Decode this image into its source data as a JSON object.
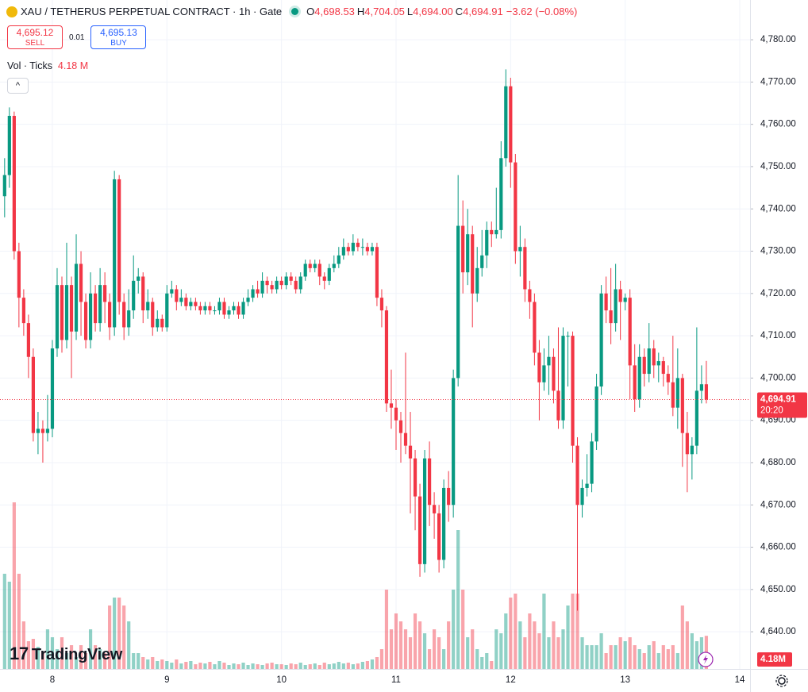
{
  "chart_data": {
    "type": "candlestick",
    "title": "XAU / TETHERUS PERPETUAL CONTRACT · 1h · Gate",
    "legend_ohlc": [
      {
        "label": "O",
        "value": "4,698.53"
      },
      {
        "label": "H",
        "value": "4,704.05"
      },
      {
        "label": "L",
        "value": "4,694.00"
      },
      {
        "label": "C",
        "value": "4,694.91"
      }
    ],
    "change": "−3.62 (−0.08%)",
    "trade": {
      "sell_price": "4,695.12",
      "sell": "SELL",
      "spread": "0.01",
      "buy_price": "4,695.13",
      "buy": "BUY"
    },
    "volume_legend": {
      "name": "Vol · Ticks",
      "value": "4.18 M"
    },
    "last_price_label": "4,694.91",
    "countdown": "20:20",
    "volume_badge": "4.18M",
    "brand": "TradingView",
    "up_color": "#089981",
    "down_color": "#f23645",
    "grid": true,
    "xlim": [
      7.543,
      14.09
    ],
    "xticks": [
      8,
      9,
      10,
      11,
      12,
      13,
      14
    ],
    "ylim": [
      4631.2,
      4789.4
    ],
    "yticks": [
      {
        "value": 4640,
        "label": "4,640.00"
      },
      {
        "value": 4650,
        "label": "4,650.00"
      },
      {
        "value": 4660,
        "label": "4,660.00"
      },
      {
        "value": 4670,
        "label": "4,670.00"
      },
      {
        "value": 4680,
        "label": "4,680.00"
      },
      {
        "value": 4690,
        "label": "4,690.00"
      },
      {
        "value": 4700,
        "label": "4,700.00"
      },
      {
        "value": 4710,
        "label": "4,710.00"
      },
      {
        "value": 4720,
        "label": "4,720.00"
      },
      {
        "value": 4730,
        "label": "4,730.00"
      },
      {
        "value": 4740,
        "label": "4,740.00"
      },
      {
        "value": 4750,
        "label": "4,750.00"
      },
      {
        "value": 4760,
        "label": "4,760.00"
      },
      {
        "value": 4770,
        "label": "4,770.00"
      },
      {
        "value": 4780,
        "label": "4,780.00"
      }
    ],
    "volume_ylim": [
      0,
      84.3
    ],
    "x": [
      7.5833,
      7.625,
      7.6667,
      7.7083,
      7.75,
      7.7917,
      7.8333,
      7.875,
      7.9167,
      7.9583,
      8,
      8.0417,
      8.0833,
      8.125,
      8.1667,
      8.2083,
      8.25,
      8.2917,
      8.3333,
      8.375,
      8.4167,
      8.4583,
      8.5,
      8.5417,
      8.5833,
      8.625,
      8.6667,
      8.7083,
      8.75,
      8.7917,
      8.8333,
      8.875,
      8.9167,
      8.9583,
      9,
      9.0417,
      9.0833,
      9.125,
      9.1667,
      9.2083,
      9.25,
      9.2917,
      9.3333,
      9.375,
      9.4167,
      9.4583,
      9.5,
      9.5417,
      9.5833,
      9.625,
      9.6667,
      9.7083,
      9.75,
      9.7917,
      9.8333,
      9.875,
      9.9167,
      9.9583,
      10,
      10.0417,
      10.0833,
      10.125,
      10.1667,
      10.2083,
      10.25,
      10.2917,
      10.3333,
      10.375,
      10.4167,
      10.4583,
      10.5,
      10.5417,
      10.5833,
      10.625,
      10.6667,
      10.7083,
      10.75,
      10.7917,
      10.8333,
      10.875,
      10.9167,
      10.9583,
      11,
      11.0417,
      11.0833,
      11.125,
      11.1667,
      11.2083,
      11.25,
      11.2917,
      11.3333,
      11.375,
      11.4167,
      11.4583,
      11.5,
      11.5417,
      11.5833,
      11.625,
      11.6667,
      11.7083,
      11.75,
      11.7917,
      11.8333,
      11.875,
      11.9167,
      11.9583,
      12,
      12.0417,
      12.0833,
      12.125,
      12.1667,
      12.2083,
      12.25,
      12.2917,
      12.3333,
      12.375,
      12.4167,
      12.4583,
      12.5,
      12.5417,
      12.5833,
      12.625,
      12.6667,
      12.7083,
      12.75,
      12.7917,
      12.8333,
      12.875,
      12.9167,
      12.9583,
      13,
      13.0417,
      13.0833,
      13.125,
      13.1667,
      13.2083,
      13.25,
      13.2917,
      13.3333,
      13.375,
      13.4167,
      13.4583,
      13.5,
      13.5417,
      13.5833,
      13.625,
      13.6667,
      13.7083
    ],
    "open": [
      4743,
      4748,
      4762,
      4730,
      4719,
      4713,
      4705,
      4687,
      4688,
      4687,
      4688,
      4707,
      4722,
      4709,
      4722,
      4711,
      4727,
      4718,
      4709,
      4720,
      4713,
      4722,
      4718,
      4712,
      4747,
      4718,
      4712,
      4716,
      4723,
      4724,
      4716,
      4718,
      4712,
      4714,
      4712,
      4720,
      4721,
      4718,
      4719,
      4717,
      4718,
      4717,
      4716,
      4717,
      4716,
      4716,
      4718,
      4715,
      4716,
      4717,
      4715,
      4718,
      4719,
      4721,
      4720,
      4723,
      4722,
      4721,
      4723,
      4722,
      4724,
      4723,
      4721,
      4724,
      4727,
      4726,
      4727,
      4724,
      4723,
      4726,
      4727,
      4729,
      4731,
      4730,
      4732,
      4731,
      4731,
      4730,
      4731,
      4719,
      4716,
      4694,
      4693,
      4690,
      4687,
      4684,
      4681,
      4672,
      4656,
      4681,
      4670,
      4668,
      4657,
      4674,
      4670,
      4700,
      4736,
      4725,
      4734,
      4720,
      4726,
      4729,
      4735,
      4734,
      4735,
      4752,
      4769,
      4751,
      4730,
      4731,
      4721,
      4718,
      4706,
      4699,
      4703,
      4705,
      4697,
      4690,
      4710,
      4710,
      4684,
      4670,
      4674,
      4675,
      4685,
      4698,
      4720,
      4716,
      4713,
      4721,
      4718,
      4719,
      4703,
      4695,
      4705,
      4701,
      4707,
      4703,
      4704,
      4701,
      4699,
      4693,
      4700,
      4687,
      4682,
      4684,
      4697,
      4698.53
    ],
    "high": [
      4752,
      4764,
      4763,
      4732,
      4721,
      4715,
      4707,
      4692,
      4690,
      4696,
      4709,
      4726,
      4724,
      4732,
      4724,
      4734,
      4730,
      4720,
      4725,
      4722,
      4726,
      4725,
      4720,
      4749,
      4748,
      4720,
      4721,
      4729,
      4726,
      4725,
      4721,
      4719,
      4716,
      4715,
      4722,
      4723,
      4722,
      4721,
      4720,
      4719,
      4719,
      4718,
      4718,
      4718,
      4717,
      4719,
      4719,
      4717,
      4718,
      4718,
      4719,
      4721,
      4722,
      4723,
      4725,
      4724,
      4723,
      4724,
      4724,
      4725,
      4725,
      4724,
      4725,
      4728,
      4728,
      4728,
      4728,
      4725,
      4727,
      4729,
      4731,
      4733,
      4732,
      4734,
      4733,
      4733,
      4732,
      4732,
      4732,
      4721,
      4717,
      4702,
      4695,
      4692,
      4706,
      4692,
      4683,
      4675,
      4683,
      4685,
      4673,
      4670,
      4676,
      4678,
      4702,
      4748,
      4742,
      4740,
      4736,
      4731,
      4735,
      4737,
      4737,
      4745,
      4756,
      4773,
      4771,
      4753,
      4736,
      4733,
      4723,
      4720,
      4709,
      4707,
      4710,
      4707,
      4712,
      4712,
      4711,
      4711,
      4686,
      4676,
      4682,
      4687,
      4701,
      4722,
      4724,
      4726,
      4727,
      4723,
      4720,
      4721,
      4708,
      4708,
      4707,
      4713,
      4709,
      4706,
      4705,
      4703,
      4710,
      4707,
      4701,
      4692,
      4686,
      4712,
      4703,
      4704.05
    ],
    "low": [
      4738,
      4745,
      4728,
      4712,
      4710,
      4700,
      4685,
      4682,
      4680,
      4685,
      4686,
      4705,
      4706,
      4707,
      4700,
      4709,
      4710,
      4707,
      4707,
      4711,
      4711,
      4713,
      4709,
      4710,
      4715,
      4709,
      4710,
      4714,
      4720,
      4713,
      4714,
      4710,
      4711,
      4711,
      4711,
      4719,
      4716,
      4717,
      4716,
      4716,
      4716,
      4715,
      4715,
      4715,
      4715,
      4715,
      4714,
      4714,
      4715,
      4714,
      4714,
      4717,
      4718,
      4719,
      4719,
      4720,
      4720,
      4720,
      4721,
      4721,
      4722,
      4720,
      4720,
      4723,
      4725,
      4725,
      4722,
      4721,
      4722,
      4725,
      4726,
      4728,
      4729,
      4729,
      4730,
      4729,
      4729,
      4729,
      4717,
      4712,
      4692,
      4688,
      4683,
      4680,
      4682,
      4668,
      4664,
      4653,
      4654,
      4665,
      4662,
      4654,
      4655,
      4666,
      4667,
      4698,
      4720,
      4722,
      4712,
      4718,
      4724,
      4726,
      4731,
      4733,
      4733,
      4750,
      4745,
      4727,
      4724,
      4718,
      4714,
      4703,
      4690,
      4697,
      4696,
      4694,
      4688,
      4688,
      4698,
      4680,
      4645,
      4667,
      4672,
      4673,
      4683,
      4696,
      4713,
      4708,
      4711,
      4709,
      4716,
      4695,
      4692,
      4693,
      4698,
      4699,
      4700,
      4699,
      4698,
      4696,
      4691,
      4688,
      4679,
      4673,
      4676,
      4682,
      4694,
      4694.0
    ],
    "close": [
      4748,
      4762,
      4730,
      4719,
      4713,
      4705,
      4687,
      4688,
      4687,
      4688,
      4707,
      4722,
      4709,
      4722,
      4711,
      4727,
      4718,
      4709,
      4720,
      4713,
      4722,
      4718,
      4712,
      4747,
      4718,
      4712,
      4716,
      4723,
      4724,
      4716,
      4718,
      4712,
      4714,
      4712,
      4720,
      4721,
      4718,
      4719,
      4717,
      4718,
      4717,
      4716,
      4717,
      4716,
      4716,
      4718,
      4715,
      4716,
      4717,
      4715,
      4718,
      4719,
      4721,
      4720,
      4723,
      4722,
      4721,
      4723,
      4722,
      4724,
      4723,
      4721,
      4724,
      4727,
      4726,
      4727,
      4724,
      4723,
      4726,
      4727,
      4729,
      4731,
      4730,
      4732,
      4731,
      4731,
      4730,
      4731,
      4719,
      4716,
      4694,
      4693,
      4690,
      4687,
      4684,
      4681,
      4672,
      4656,
      4681,
      4670,
      4668,
      4657,
      4674,
      4670,
      4700,
      4736,
      4725,
      4734,
      4720,
      4726,
      4729,
      4735,
      4734,
      4735,
      4752,
      4769,
      4751,
      4730,
      4731,
      4721,
      4718,
      4706,
      4699,
      4703,
      4705,
      4697,
      4690,
      4710,
      4710,
      4684,
      4670,
      4674,
      4675,
      4685,
      4698,
      4720,
      4716,
      4713,
      4721,
      4718,
      4719,
      4703,
      4695,
      4705,
      4701,
      4707,
      4703,
      4704,
      4701,
      4699,
      4693,
      4700,
      4687,
      4682,
      4684,
      4697,
      4698.53,
      4694.91
    ],
    "volume": [
      12,
      11,
      21,
      12,
      6,
      3.5,
      3.8,
      2.8,
      2.2,
      5,
      4,
      2.5,
      4,
      2,
      3,
      1.5,
      3,
      2,
      5,
      3,
      2.5,
      2,
      8,
      9,
      9,
      8,
      6,
      2,
      2,
      1.5,
      1.2,
      1.5,
      1,
      1.2,
      1,
      0.8,
      1.2,
      0.7,
      0.9,
      1,
      0.6,
      0.8,
      0.7,
      0.9,
      0.6,
      1,
      0.8,
      0.5,
      0.7,
      0.6,
      0.8,
      0.5,
      0.7,
      0.6,
      0.5,
      0.7,
      0.8,
      0.6,
      0.6,
      0.5,
      0.7,
      0.6,
      0.8,
      0.5,
      0.6,
      0.7,
      0.5,
      0.8,
      0.6,
      0.7,
      0.9,
      0.7,
      0.8,
      0.6,
      0.7,
      0.9,
      1,
      1.2,
      1.5,
      2.5,
      10,
      5,
      7,
      6,
      5,
      4,
      7,
      6,
      4.5,
      2.5,
      5,
      4,
      2.5,
      6,
      10,
      17.5,
      10,
      4,
      5,
      2.5,
      1.5,
      2,
      1,
      5,
      4.5,
      7,
      9,
      9.5,
      6,
      4,
      7,
      6,
      4.5,
      9.5,
      4,
      6,
      4,
      5,
      8,
      9.5,
      9.5,
      4,
      3,
      3,
      3,
      4.5,
      2,
      3,
      3,
      4,
      3.5,
      4,
      3,
      2.5,
      2,
      3,
      3.5,
      2,
      3,
      2.5,
      3,
      2,
      8,
      6,
      4.5,
      3.5,
      4,
      4.18
    ]
  }
}
